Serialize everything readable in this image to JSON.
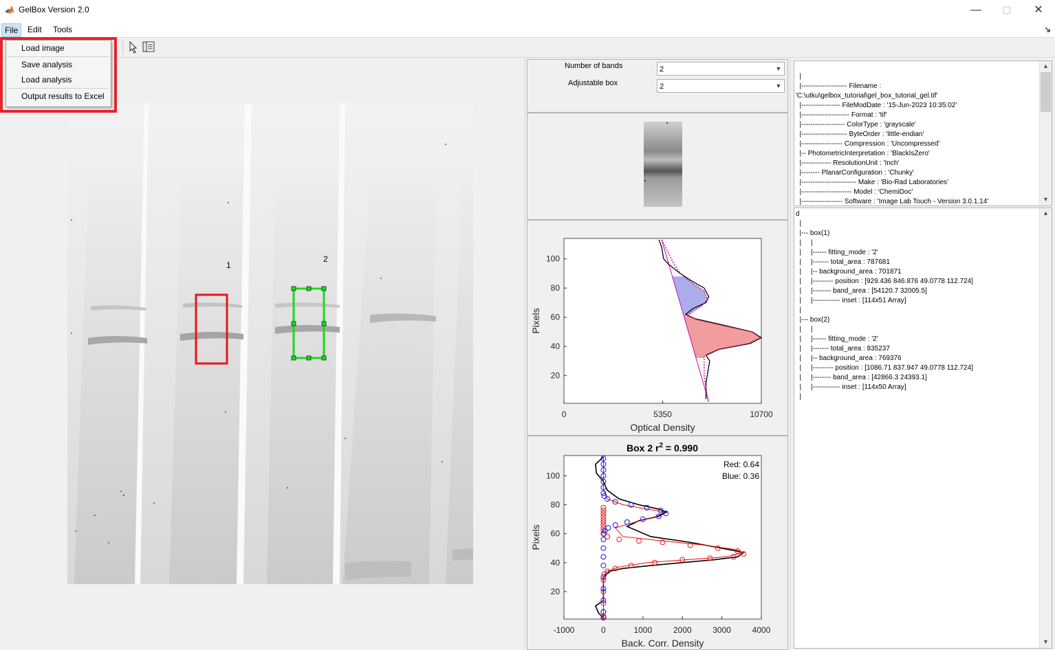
{
  "window": {
    "title": "GelBox Version 2.0",
    "minimize": "—",
    "maximize": "☐",
    "close": "✕"
  },
  "menubar": {
    "items": [
      "File",
      "Edit",
      "Tools"
    ]
  },
  "file_menu": {
    "items": [
      "Load image",
      "Save analysis",
      "Load analysis",
      "Output results to Excel"
    ]
  },
  "gel": {
    "box_labels": [
      "1",
      "2"
    ],
    "box_colors": [
      "#e8151b",
      "#1ed81e"
    ]
  },
  "controls": {
    "number_of_bands_label": "Number of bands",
    "number_of_bands_value": "2",
    "adjustable_box_label": "Adjustable box",
    "adjustable_box_value": "2"
  },
  "metadata_tree": [
    "  |",
    "  |-------------------- Filename :",
    "'C:\\utku\\gelbox_tutorial\\gel_box_tutorial_gel.tif'",
    "  |----------------- FileModDate : '15-Jun-2023 10:35:02'",
    "  |--------------------- Format : 'tif'",
    "  |------------------- ColorType : 'grayscale'",
    "  |-------------------- ByteOrder : 'little-endian'",
    "  |------------------ Compression : 'Uncompressed'",
    "  |-- PhotometricInterpretation : 'BlackIsZero'",
    "  |------------- ResolutionUnit : 'Inch'",
    "  |-------- PlanarConfiguration : 'Chunky'",
    "  |------------------------ Make : 'Bio-Rad Laboratories'",
    "  |---------------------- Model : 'ChemiDoc'",
    "  |------------------ Software : 'Image Lab Touch - Version 3.0.1.14'"
  ],
  "results_tree": [
    "d",
    "  |",
    "  |--- box(1)",
    "  |     |",
    "  |     |------ fitting_mode : '2'",
    "  |     |------- total_area : 787681",
    "  |     |-- background_area : 701871",
    "  |     |--------- position : [929.436 846.876 49.0778 112.724]",
    "  |     |-------- band_area : [54120.7 32005.5]",
    "  |     |------------ inset : [114x51 Array]",
    "  |",
    "  |--- box(2)",
    "  |     |",
    "  |     |------ fitting_mode : '2'",
    "  |     |------- total_area : 835237",
    "  |     |-- background_area : 769376",
    "  |     |--------- position : [1086.71 837.947 49.0778 112.724]",
    "  |     |-------- band_area : [42866.3 24393.1]",
    "  |     |------------ inset : [114x50 Array]",
    "  |"
  ],
  "chart_data": [
    {
      "type": "line",
      "xlabel": "Optical Density",
      "ylabel": "Pixels",
      "xlim": [
        0,
        10700
      ],
      "ylim": [
        1,
        114
      ],
      "xticks": [
        "0",
        "5350",
        "10700"
      ],
      "yticks": [
        "20",
        "40",
        "60",
        "80",
        "100"
      ],
      "series": [
        {
          "role": "profile",
          "color": "#000000",
          "x": [
            5150,
            5300,
            5350,
            5400,
            5700,
            6300,
            6900,
            7600,
            7850,
            7700,
            7000,
            6600,
            7100,
            8500,
            10200,
            10700,
            10100,
            8400,
            7700,
            7900,
            7700,
            7700
          ],
          "y": [
            113,
            108,
            104,
            100,
            96,
            90,
            85,
            80,
            74,
            70,
            66,
            62,
            59,
            55,
            50,
            46,
            42,
            38,
            34,
            30,
            15,
            4
          ]
        },
        {
          "role": "baseline",
          "color": "#cc00cc",
          "x": [
            5300,
            7850
          ],
          "y": [
            113,
            2
          ]
        },
        {
          "role": "fit",
          "color": "#cc0066",
          "x": [
            5300,
            5900,
            6300,
            6900,
            7600,
            7780,
            7500,
            7000,
            6700,
            7300,
            8700,
            10200,
            10650,
            10000,
            8400,
            7600,
            7600,
            7800
          ],
          "y": [
            113,
            98,
            90,
            84,
            78,
            72,
            68,
            64,
            61,
            58,
            54,
            50,
            46,
            42,
            38,
            33,
            20,
            3
          ]
        }
      ],
      "fills": [
        {
          "name": "blue band",
          "color": "#9d9de8"
        },
        {
          "name": "red band",
          "color": "#f08c8c"
        }
      ]
    },
    {
      "type": "scatter",
      "title": "Box 2 r",
      "title_sup": "2",
      "title_suffix": " = 0.990",
      "annotations": [
        "Red: 0.64",
        "Blue: 0.36"
      ],
      "xlabel": "Back. Corr. Density",
      "ylabel": "Pixels",
      "xlim": [
        -1000,
        4000
      ],
      "ylim": [
        1,
        114
      ],
      "xticks": [
        "-1000",
        "0",
        "1000",
        "2000",
        "3000",
        "4000"
      ],
      "yticks": [
        "20",
        "40",
        "60",
        "80",
        "100"
      ],
      "series": [
        {
          "name": "Red",
          "color": "#e8151b",
          "x": [
            0,
            0,
            0,
            0,
            0,
            0,
            0,
            0,
            0,
            0,
            100,
            400,
            900,
            1500,
            2200,
            2900,
            3400,
            3550,
            3300,
            2700,
            2000,
            1300,
            700,
            300,
            100,
            20,
            0,
            0,
            0,
            0,
            0,
            0
          ],
          "y": [
            60,
            62,
            64,
            66,
            68,
            70,
            72,
            74,
            76,
            78,
            58,
            56,
            55,
            54,
            52,
            50,
            48,
            46,
            44,
            43,
            42,
            40,
            38,
            36,
            34,
            32,
            28,
            20,
            12,
            6,
            3,
            2
          ]
        },
        {
          "name": "Blue",
          "color": "#1414e8",
          "x": [
            0,
            0,
            0,
            0,
            0,
            0,
            0,
            20,
            100,
            300,
            700,
            1100,
            1450,
            1580,
            1400,
            1000,
            600,
            300,
            120,
            40,
            10,
            0,
            0,
            0,
            0,
            0,
            0,
            0,
            0,
            0
          ],
          "y": [
            112,
            108,
            104,
            100,
            96,
            92,
            88,
            86,
            84,
            82,
            80,
            78,
            76,
            74,
            72,
            70,
            68,
            66,
            64,
            62,
            60,
            56,
            50,
            44,
            38,
            30,
            22,
            14,
            6,
            2
          ]
        },
        {
          "name": "data",
          "color": "#000000",
          "x": [
            0,
            -200,
            -180,
            0,
            100,
            400,
            900,
            1400,
            1600,
            1400,
            900,
            600,
            1200,
            2200,
            3000,
            3550,
            3400,
            2800,
            2000,
            1200,
            500,
            150,
            0,
            0,
            -200,
            -120,
            0
          ],
          "y": [
            113,
            108,
            102,
            96,
            90,
            84,
            80,
            77,
            75,
            72,
            69,
            65,
            58,
            54,
            50,
            47,
            44,
            42,
            40,
            38,
            36,
            34,
            30,
            14,
            10,
            5,
            2
          ]
        },
        {
          "name": "fit",
          "color": "#ff0000",
          "x": [
            0,
            0,
            100,
            500,
            1100,
            1550,
            1350,
            800,
            300,
            500,
            1500,
            2600,
            3350,
            3550,
            3100,
            2100,
            1100,
            400,
            80,
            0,
            0
          ],
          "y": [
            113,
            90,
            84,
            80,
            77,
            75,
            72,
            68,
            64,
            58,
            55,
            52,
            49,
            47,
            44,
            42,
            40,
            37,
            34,
            30,
            2
          ]
        }
      ]
    }
  ]
}
